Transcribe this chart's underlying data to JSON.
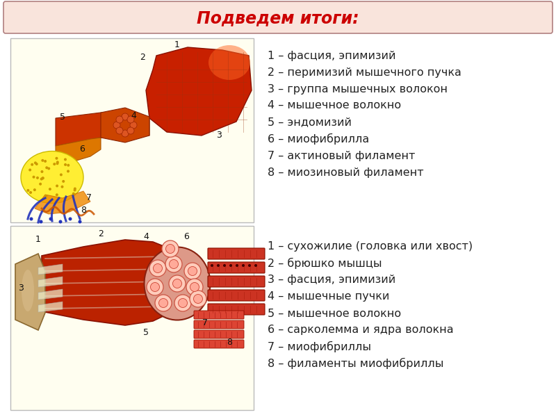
{
  "title": "Подведем итоги:",
  "title_color": "#cc0000",
  "title_bg_color": "#f9e4dc",
  "title_border_color": "#b08080",
  "bg_color": "#ffffff",
  "diagram_bg_color": "#fffef0",
  "labels_top": [
    "1 – фасция, эпимизий",
    "2 – перимизий мышечного пучка",
    "3 – группа мышечных волокон",
    "4 – мышечное волокно",
    "5 – эндомизий",
    "6 – миофибрилла",
    "7 – актиновый филамент",
    "8 – миозиновый филамент"
  ],
  "labels_bottom": [
    "1 – сухожилие (головка или хвост)",
    "2 – брюшко мышцы",
    "3 – фасция, эпимизий",
    "4 – мышечные пучки",
    "5 – мышечное волокно",
    "6 – сарколемма и ядра волокна",
    "7 – миофибриллы",
    "8 – филаменты миофибриллы"
  ],
  "text_color": "#222222",
  "text_fontsize": 11.5,
  "title_fontsize": 17,
  "fig_width": 8.0,
  "fig_height": 6.0,
  "dpi": 100
}
